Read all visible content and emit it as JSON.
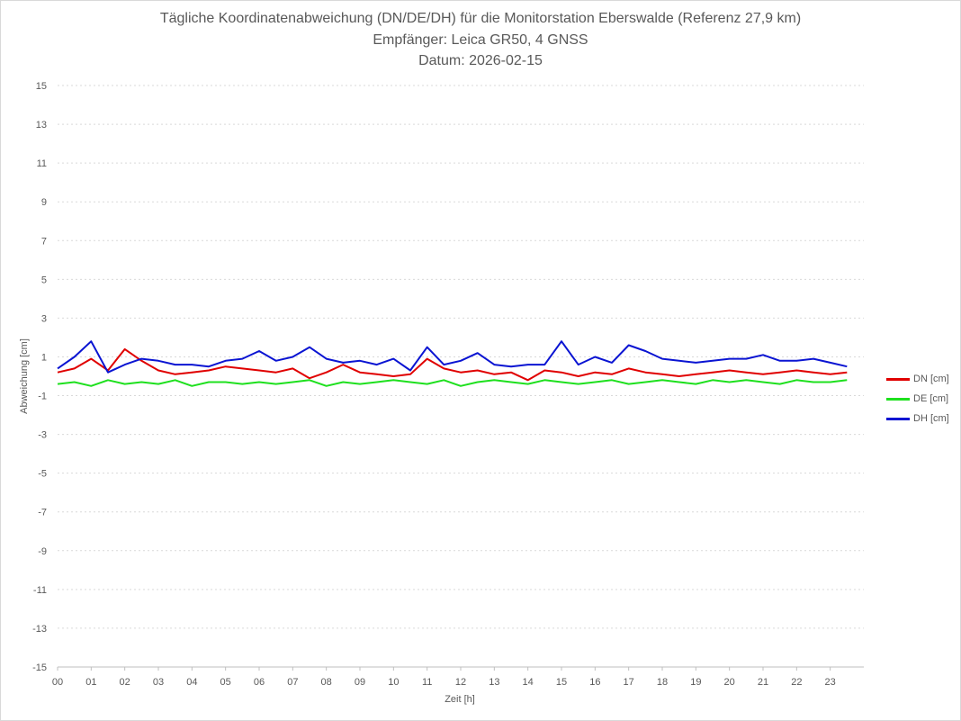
{
  "chart_data": {
    "type": "line",
    "title_lines": [
      "Tägliche Koordinatenabweichung (DN/DE/DH) für die Monitorstation Eberswalde (Referenz 27,9 km)",
      "Empfänger: Leica GR50, 4 GNSS",
      "Datum: 2026-02-15"
    ],
    "xlabel": "Zeit [h]",
    "ylabel": "Abweichung [cm]",
    "xlim": [
      0,
      24
    ],
    "ylim": [
      -15,
      15
    ],
    "y_ticks": [
      "15",
      "13",
      "11",
      "9",
      "7",
      "5",
      "3",
      "1",
      "-1",
      "-3",
      "-5",
      "-7",
      "-9",
      "-11",
      "-13",
      "-15"
    ],
    "x_ticks": [
      "00",
      "01",
      "02",
      "03",
      "04",
      "05",
      "06",
      "07",
      "08",
      "09",
      "10",
      "11",
      "12",
      "13",
      "14",
      "15",
      "16",
      "17",
      "18",
      "19",
      "20",
      "21",
      "22",
      "23"
    ],
    "grid": true,
    "legend_position": "right",
    "series": [
      {
        "name": "DN [cm]",
        "color": "#e00000",
        "x": [
          0,
          0.5,
          1,
          1.5,
          2,
          2.5,
          3,
          3.5,
          4,
          4.5,
          5,
          5.5,
          6,
          6.5,
          7,
          7.5,
          8,
          8.5,
          9,
          9.5,
          10,
          10.5,
          11,
          11.5,
          12,
          12.5,
          13,
          13.5,
          14,
          14.5,
          15,
          15.5,
          16,
          16.5,
          17,
          17.5,
          18,
          18.5,
          19,
          19.5,
          20,
          20.5,
          21,
          21.5,
          22,
          22.5,
          23,
          23.5
        ],
        "values": [
          0.2,
          0.4,
          0.9,
          0.3,
          1.4,
          0.8,
          0.3,
          0.1,
          0.2,
          0.3,
          0.5,
          0.4,
          0.3,
          0.2,
          0.4,
          -0.1,
          0.2,
          0.6,
          0.2,
          0.1,
          0.0,
          0.1,
          0.9,
          0.4,
          0.2,
          0.3,
          0.1,
          0.2,
          -0.2,
          0.3,
          0.2,
          0.0,
          0.2,
          0.1,
          0.4,
          0.2,
          0.1,
          0.0,
          0.1,
          0.2,
          0.3,
          0.2,
          0.1,
          0.2,
          0.3,
          0.2,
          0.1,
          0.2
        ]
      },
      {
        "name": "DE [cm]",
        "color": "#1ee01e",
        "x": [
          0,
          0.5,
          1,
          1.5,
          2,
          2.5,
          3,
          3.5,
          4,
          4.5,
          5,
          5.5,
          6,
          6.5,
          7,
          7.5,
          8,
          8.5,
          9,
          9.5,
          10,
          10.5,
          11,
          11.5,
          12,
          12.5,
          13,
          13.5,
          14,
          14.5,
          15,
          15.5,
          16,
          16.5,
          17,
          17.5,
          18,
          18.5,
          19,
          19.5,
          20,
          20.5,
          21,
          21.5,
          22,
          22.5,
          23,
          23.5
        ],
        "values": [
          -0.4,
          -0.3,
          -0.5,
          -0.2,
          -0.4,
          -0.3,
          -0.4,
          -0.2,
          -0.5,
          -0.3,
          -0.3,
          -0.4,
          -0.3,
          -0.4,
          -0.3,
          -0.2,
          -0.5,
          -0.3,
          -0.4,
          -0.3,
          -0.2,
          -0.3,
          -0.4,
          -0.2,
          -0.5,
          -0.3,
          -0.2,
          -0.3,
          -0.4,
          -0.2,
          -0.3,
          -0.4,
          -0.3,
          -0.2,
          -0.4,
          -0.3,
          -0.2,
          -0.3,
          -0.4,
          -0.2,
          -0.3,
          -0.2,
          -0.3,
          -0.4,
          -0.2,
          -0.3,
          -0.3,
          -0.2
        ]
      },
      {
        "name": "DH [cm]",
        "color": "#0a14d2",
        "x": [
          0,
          0.5,
          1,
          1.5,
          2,
          2.5,
          3,
          3.5,
          4,
          4.5,
          5,
          5.5,
          6,
          6.5,
          7,
          7.5,
          8,
          8.5,
          9,
          9.5,
          10,
          10.5,
          11,
          11.5,
          12,
          12.5,
          13,
          13.5,
          14,
          14.5,
          15,
          15.5,
          16,
          16.5,
          17,
          17.5,
          18,
          18.5,
          19,
          19.5,
          20,
          20.5,
          21,
          21.5,
          22,
          22.5,
          23,
          23.5
        ],
        "values": [
          0.4,
          1.0,
          1.8,
          0.2,
          0.6,
          0.9,
          0.8,
          0.6,
          0.6,
          0.5,
          0.8,
          0.9,
          1.3,
          0.8,
          1.0,
          1.5,
          0.9,
          0.7,
          0.8,
          0.6,
          0.9,
          0.3,
          1.5,
          0.6,
          0.8,
          1.2,
          0.6,
          0.5,
          0.6,
          0.6,
          1.8,
          0.6,
          1.0,
          0.7,
          1.6,
          1.3,
          0.9,
          0.8,
          0.7,
          0.8,
          0.9,
          0.9,
          1.1,
          0.8,
          0.8,
          0.9,
          0.7,
          0.5
        ]
      }
    ]
  }
}
